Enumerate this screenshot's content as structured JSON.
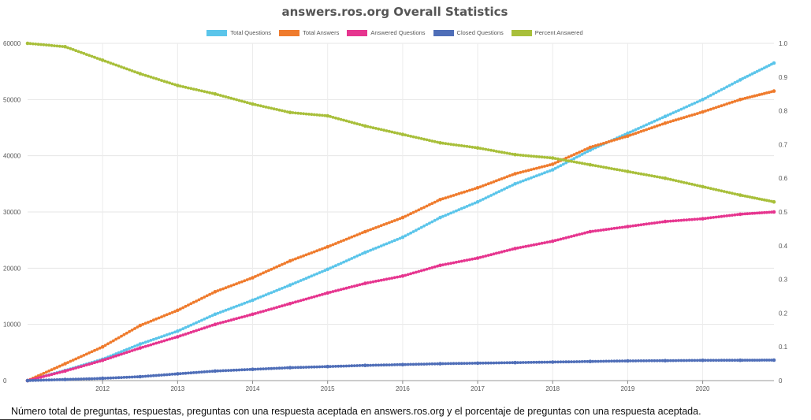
{
  "chart_data": {
    "type": "line",
    "title": "answers.ros.org Overall Statistics",
    "x": [
      2011.0,
      2011.5,
      2012.0,
      2012.5,
      2013.0,
      2013.5,
      2014.0,
      2014.5,
      2015.0,
      2015.5,
      2016.0,
      2016.5,
      2017.0,
      2017.5,
      2018.0,
      2018.5,
      2019.0,
      2019.5,
      2020.0,
      2020.5,
      2020.95
    ],
    "x_ticks": [
      "2012",
      "2013",
      "2014",
      "2015",
      "2016",
      "2017",
      "2018",
      "2019",
      "2020"
    ],
    "y_left_ticks": [
      "0",
      "10000",
      "20000",
      "30000",
      "40000",
      "50000",
      "60000"
    ],
    "y_right_ticks": [
      "0",
      "0.1",
      "0.2",
      "0.3",
      "0.4",
      "0.5",
      "0.6",
      "0.7",
      "0.8",
      "0.9",
      "1.0"
    ],
    "ylim_left": [
      0,
      60000
    ],
    "ylim_right": [
      0,
      1.0
    ],
    "legend_position": "top-center",
    "grid": true,
    "series": [
      {
        "name": "Total Questions",
        "color": "#5BC5EA",
        "axis": "left",
        "values": [
          0,
          1800,
          3800,
          6500,
          8800,
          11800,
          14300,
          17000,
          19800,
          22800,
          25500,
          29000,
          31800,
          35000,
          37500,
          41000,
          44000,
          47000,
          50000,
          53500,
          56500
        ]
      },
      {
        "name": "Total Answers",
        "color": "#EF7B2D",
        "axis": "left",
        "values": [
          0,
          3000,
          6000,
          9800,
          12500,
          15800,
          18300,
          21300,
          23800,
          26500,
          29000,
          32200,
          34300,
          36800,
          38500,
          41500,
          43500,
          45800,
          47800,
          50000,
          51500
        ]
      },
      {
        "name": "Answered Questions",
        "color": "#E6358F",
        "axis": "left",
        "values": [
          0,
          1700,
          3600,
          5800,
          7800,
          10000,
          11800,
          13700,
          15600,
          17300,
          18600,
          20500,
          21800,
          23500,
          24800,
          26500,
          27400,
          28300,
          28800,
          29600,
          30000
        ]
      },
      {
        "name": "Closed Questions",
        "color": "#4F6EB8",
        "axis": "left",
        "values": [
          0,
          200,
          400,
          700,
          1200,
          1700,
          2000,
          2300,
          2500,
          2700,
          2850,
          3000,
          3100,
          3200,
          3300,
          3400,
          3500,
          3550,
          3600,
          3620,
          3650
        ]
      },
      {
        "name": "Percent Answered",
        "color": "#A8BF3A",
        "axis": "right",
        "values": [
          1.0,
          0.99,
          0.95,
          0.91,
          0.875,
          0.85,
          0.82,
          0.795,
          0.785,
          0.755,
          0.73,
          0.705,
          0.69,
          0.67,
          0.66,
          0.64,
          0.62,
          0.6,
          0.575,
          0.55,
          0.53
        ]
      }
    ]
  },
  "caption": "Número total de preguntas, respuestas, preguntas con una respuesta aceptada en answers.ros.org y el porcentaje de preguntas con una respuesta aceptada."
}
